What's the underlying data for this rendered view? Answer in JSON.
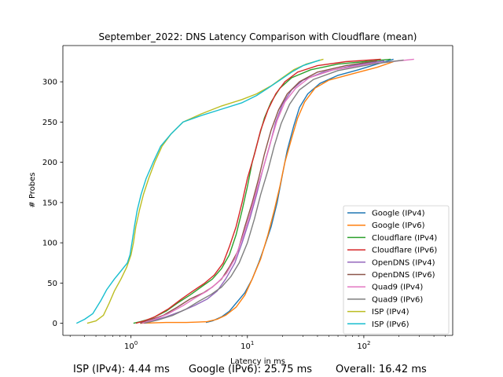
{
  "chart_data": {
    "type": "line",
    "title": "September_2022: DNS Latency Comparison with Cloudflare (mean)",
    "xlabel": "Latency in ms",
    "ylabel": "# Probes",
    "xscale": "log",
    "xlim": [
      0.26,
      580
    ],
    "ylim": [
      -15,
      345
    ],
    "x_ticks": [
      1,
      10,
      100
    ],
    "x_tick_labels": [
      "10^0",
      "10^1",
      "10^2"
    ],
    "y_ticks": [
      0,
      50,
      100,
      150,
      200,
      250,
      300
    ],
    "y_tick_labels": [
      "0",
      "50",
      "100",
      "150",
      "200",
      "250",
      "300"
    ],
    "grid": false,
    "legend_position": "lower-right",
    "series": [
      {
        "name": "Google (IPv4)",
        "color": "#1f77b4",
        "points": [
          [
            4.4,
            1
          ],
          [
            5,
            3
          ],
          [
            6,
            8
          ],
          [
            7,
            15
          ],
          [
            8,
            25
          ],
          [
            9.5,
            38
          ],
          [
            11,
            55
          ],
          [
            12.5,
            75
          ],
          [
            14,
            95
          ],
          [
            16,
            120
          ],
          [
            18,
            150
          ],
          [
            20,
            185
          ],
          [
            22,
            215
          ],
          [
            25,
            245
          ],
          [
            28,
            268
          ],
          [
            33,
            285
          ],
          [
            42,
            298
          ],
          [
            60,
            308
          ],
          [
            90,
            315
          ],
          [
            130,
            322
          ],
          [
            180,
            328
          ]
        ]
      },
      {
        "name": "Google (IPv6)",
        "color": "#ff7f0e",
        "points": [
          [
            1.2,
            0
          ],
          [
            2,
            1
          ],
          [
            3,
            1
          ],
          [
            4.5,
            2
          ],
          [
            5.5,
            5
          ],
          [
            6.5,
            10
          ],
          [
            8,
            20
          ],
          [
            9.5,
            35
          ],
          [
            11,
            55
          ],
          [
            13,
            80
          ],
          [
            15,
            110
          ],
          [
            17,
            140
          ],
          [
            19,
            170
          ],
          [
            21,
            200
          ],
          [
            24,
            230
          ],
          [
            27,
            255
          ],
          [
            31,
            275
          ],
          [
            38,
            292
          ],
          [
            50,
            302
          ],
          [
            80,
            310
          ],
          [
            130,
            318
          ],
          [
            180,
            325
          ]
        ]
      },
      {
        "name": "Cloudflare (IPv4)",
        "color": "#2ca02c",
        "points": [
          [
            1.05,
            0
          ],
          [
            1.2,
            2
          ],
          [
            1.5,
            6
          ],
          [
            2,
            15
          ],
          [
            2.5,
            25
          ],
          [
            3.2,
            35
          ],
          [
            4,
            45
          ],
          [
            5,
            55
          ],
          [
            6,
            68
          ],
          [
            7,
            85
          ],
          [
            8,
            110
          ],
          [
            9,
            140
          ],
          [
            10,
            170
          ],
          [
            11,
            200
          ],
          [
            12.5,
            230
          ],
          [
            14,
            255
          ],
          [
            16,
            275
          ],
          [
            19,
            292
          ],
          [
            24,
            305
          ],
          [
            35,
            315
          ],
          [
            60,
            322
          ],
          [
            120,
            326
          ],
          [
            170,
            328
          ]
        ]
      },
      {
        "name": "Cloudflare (IPv6)",
        "color": "#d62728",
        "points": [
          [
            1.1,
            0
          ],
          [
            1.3,
            3
          ],
          [
            1.6,
            8
          ],
          [
            2.1,
            18
          ],
          [
            2.7,
            30
          ],
          [
            3.4,
            40
          ],
          [
            4.3,
            50
          ],
          [
            5.2,
            60
          ],
          [
            6.2,
            75
          ],
          [
            7,
            95
          ],
          [
            8,
            120
          ],
          [
            9,
            150
          ],
          [
            10,
            180
          ],
          [
            11.5,
            210
          ],
          [
            13,
            240
          ],
          [
            15,
            265
          ],
          [
            17.5,
            285
          ],
          [
            21,
            300
          ],
          [
            27,
            312
          ],
          [
            40,
            320
          ],
          [
            70,
            325
          ],
          [
            140,
            328
          ]
        ]
      },
      {
        "name": "OpenDNS (IPv4)",
        "color": "#9467bd",
        "points": [
          [
            1.2,
            0
          ],
          [
            1.5,
            3
          ],
          [
            2,
            8
          ],
          [
            2.7,
            15
          ],
          [
            3.5,
            22
          ],
          [
            4.5,
            30
          ],
          [
            5.5,
            40
          ],
          [
            6.5,
            55
          ],
          [
            7.8,
            75
          ],
          [
            9,
            100
          ],
          [
            10.5,
            130
          ],
          [
            12,
            160
          ],
          [
            13.5,
            190
          ],
          [
            15.5,
            220
          ],
          [
            17.5,
            250
          ],
          [
            20,
            272
          ],
          [
            24,
            290
          ],
          [
            30,
            302
          ],
          [
            45,
            312
          ],
          [
            80,
            320
          ],
          [
            150,
            326
          ]
        ]
      },
      {
        "name": "OpenDNS (IPv6)",
        "color": "#8c564b",
        "points": [
          [
            1.2,
            0
          ],
          [
            1.45,
            4
          ],
          [
            1.9,
            10
          ],
          [
            2.5,
            20
          ],
          [
            3.2,
            30
          ],
          [
            4.2,
            38
          ],
          [
            5,
            45
          ],
          [
            6,
            55
          ],
          [
            7,
            70
          ],
          [
            8.3,
            90
          ],
          [
            9.5,
            120
          ],
          [
            11,
            150
          ],
          [
            12.5,
            180
          ],
          [
            14,
            210
          ],
          [
            16,
            240
          ],
          [
            18.5,
            265
          ],
          [
            22,
            285
          ],
          [
            28,
            300
          ],
          [
            40,
            312
          ],
          [
            70,
            320
          ],
          [
            130,
            326
          ]
        ]
      },
      {
        "name": "Quad9 (IPv4)",
        "color": "#e377c2",
        "points": [
          [
            1.25,
            0
          ],
          [
            1.6,
            5
          ],
          [
            2.1,
            12
          ],
          [
            2.8,
            22
          ],
          [
            3.6,
            32
          ],
          [
            4.5,
            40
          ],
          [
            5.5,
            50
          ],
          [
            6.6,
            62
          ],
          [
            7.8,
            80
          ],
          [
            9,
            105
          ],
          [
            10.5,
            135
          ],
          [
            12,
            165
          ],
          [
            13.8,
            195
          ],
          [
            15.8,
            225
          ],
          [
            18,
            252
          ],
          [
            21,
            275
          ],
          [
            26,
            292
          ],
          [
            34,
            305
          ],
          [
            55,
            315
          ],
          [
            110,
            322
          ],
          [
            270,
            328
          ]
        ]
      },
      {
        "name": "Quad9 (IPv6)",
        "color": "#7f7f7f",
        "points": [
          [
            1.3,
            0
          ],
          [
            1.7,
            4
          ],
          [
            2.3,
            10
          ],
          [
            3,
            18
          ],
          [
            3.9,
            28
          ],
          [
            4.9,
            36
          ],
          [
            6,
            45
          ],
          [
            7.2,
            58
          ],
          [
            8.5,
            75
          ],
          [
            10,
            100
          ],
          [
            11.5,
            130
          ],
          [
            13,
            160
          ],
          [
            15,
            190
          ],
          [
            17,
            220
          ],
          [
            19.5,
            248
          ],
          [
            23,
            272
          ],
          [
            28,
            290
          ],
          [
            37,
            303
          ],
          [
            60,
            314
          ],
          [
            120,
            322
          ],
          [
            220,
            327
          ]
        ]
      },
      {
        "name": "ISP (IPv4)",
        "color": "#bcbd22",
        "points": [
          [
            0.42,
            0
          ],
          [
            0.5,
            3
          ],
          [
            0.58,
            10
          ],
          [
            0.65,
            25
          ],
          [
            0.72,
            40
          ],
          [
            0.82,
            55
          ],
          [
            0.92,
            70
          ],
          [
            1.0,
            85
          ],
          [
            1.05,
            100
          ],
          [
            1.1,
            120
          ],
          [
            1.18,
            140
          ],
          [
            1.28,
            160
          ],
          [
            1.42,
            180
          ],
          [
            1.6,
            200
          ],
          [
            1.85,
            220
          ],
          [
            2.2,
            235
          ],
          [
            2.8,
            250
          ],
          [
            4,
            260
          ],
          [
            6,
            270
          ],
          [
            9,
            278
          ],
          [
            12,
            285
          ],
          [
            16,
            295
          ],
          [
            20,
            305
          ],
          [
            25,
            315
          ],
          [
            32,
            322
          ],
          [
            45,
            328
          ]
        ]
      },
      {
        "name": "ISP (IPv6)",
        "color": "#17becf",
        "points": [
          [
            0.34,
            0
          ],
          [
            0.4,
            5
          ],
          [
            0.47,
            12
          ],
          [
            0.55,
            28
          ],
          [
            0.62,
            42
          ],
          [
            0.72,
            55
          ],
          [
            0.82,
            65
          ],
          [
            0.93,
            75
          ],
          [
            0.98,
            85
          ],
          [
            1.02,
            100
          ],
          [
            1.07,
            120
          ],
          [
            1.13,
            140
          ],
          [
            1.22,
            160
          ],
          [
            1.35,
            180
          ],
          [
            1.55,
            200
          ],
          [
            1.8,
            220
          ],
          [
            2.2,
            235
          ],
          [
            2.8,
            250
          ],
          [
            4,
            258
          ],
          [
            6,
            266
          ],
          [
            9,
            274
          ],
          [
            12,
            283
          ],
          [
            15,
            292
          ],
          [
            19,
            302
          ],
          [
            24,
            312
          ],
          [
            30,
            320
          ],
          [
            42,
            327
          ]
        ]
      }
    ]
  },
  "footer": {
    "isp": "ISP (IPv4): 4.44 ms",
    "google": "Google (IPv6): 25.75 ms",
    "overall": "Overall: 16.42 ms"
  }
}
